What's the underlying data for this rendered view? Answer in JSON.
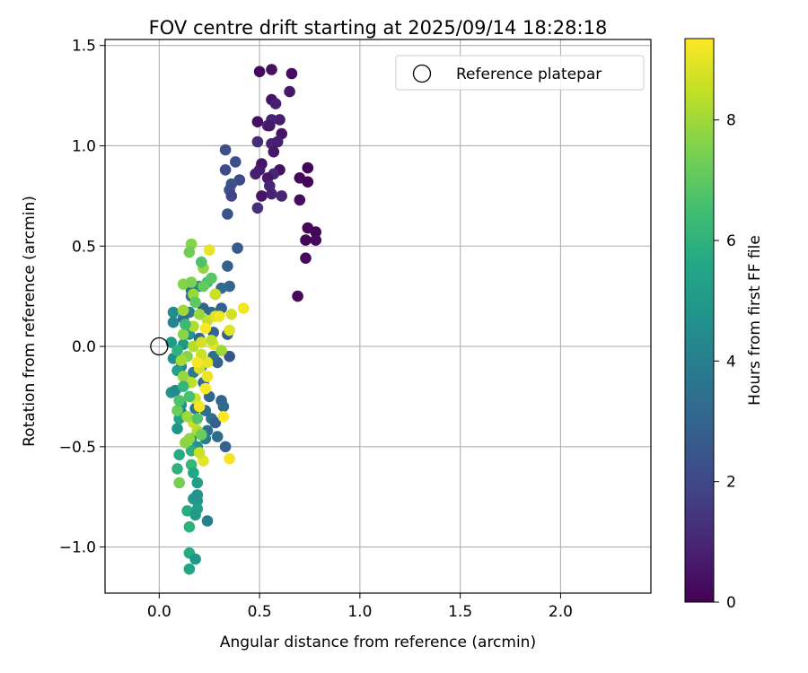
{
  "chart_data": {
    "type": "scatter",
    "title": "FOV centre drift starting at 2025/09/14 18:28:18",
    "xlabel": "Angular distance from reference (arcmin)",
    "ylabel": "Rotation from reference (arcmin)",
    "xlim": [
      -0.27,
      2.45
    ],
    "ylim": [
      -1.23,
      1.53
    ],
    "x_ticks": [
      0.0,
      0.5,
      1.0,
      1.5,
      2.0
    ],
    "x_tick_labels": [
      "0.0",
      "0.5",
      "1.0",
      "1.5",
      "2.0"
    ],
    "y_ticks": [
      -1.0,
      -0.5,
      0.0,
      0.5,
      1.0,
      1.5
    ],
    "y_tick_labels": [
      "−1.0",
      "−0.5",
      "0.0",
      "0.5",
      "1.0",
      "1.5"
    ],
    "grid": true,
    "legend": {
      "position": "top-right",
      "entries": [
        {
          "label": "Reference platepar",
          "marker": "open-circle",
          "x": 0.0,
          "y": 0.0
        }
      ]
    },
    "colorbar": {
      "label": "Hours from first FF file",
      "colormap": "viridis",
      "range": [
        0,
        9.35
      ],
      "ticks": [
        0,
        2,
        4,
        6,
        8
      ],
      "tick_labels": [
        "0",
        "2",
        "4",
        "6",
        "8"
      ]
    },
    "series": [
      {
        "color_by": "hours",
        "points": [
          [
            0.5,
            1.37,
            0.2
          ],
          [
            0.56,
            1.38,
            0.4
          ],
          [
            0.66,
            1.36,
            0.3
          ],
          [
            0.65,
            1.27,
            0.6
          ],
          [
            0.56,
            1.23,
            0.5
          ],
          [
            0.58,
            1.21,
            0.8
          ],
          [
            0.49,
            1.12,
            0.4
          ],
          [
            0.54,
            1.1,
            1.0
          ],
          [
            0.6,
            1.13,
            0.7
          ],
          [
            0.56,
            1.13,
            0.9
          ],
          [
            0.55,
            1.1,
            0.6
          ],
          [
            0.61,
            1.06,
            0.5
          ],
          [
            0.49,
            1.02,
            1.2
          ],
          [
            0.56,
            1.01,
            0.9
          ],
          [
            0.59,
            1.02,
            0.8
          ],
          [
            0.57,
            0.97,
            0.6
          ],
          [
            0.51,
            0.91,
            0.5
          ],
          [
            0.5,
            0.88,
            0.7
          ],
          [
            0.6,
            0.88,
            0.4
          ],
          [
            0.57,
            0.86,
            1.0
          ],
          [
            0.54,
            0.84,
            0.6
          ],
          [
            0.48,
            0.86,
            0.8
          ],
          [
            0.55,
            0.8,
            1.0
          ],
          [
            0.51,
            0.75,
            0.5
          ],
          [
            0.56,
            0.76,
            0.9
          ],
          [
            0.61,
            0.75,
            1.0
          ],
          [
            0.49,
            0.69,
            1.3
          ],
          [
            0.7,
            0.84,
            0.2
          ],
          [
            0.74,
            0.89,
            0.1
          ],
          [
            0.74,
            0.82,
            0.1
          ],
          [
            0.7,
            0.73,
            0.3
          ],
          [
            0.74,
            0.59,
            0.2
          ],
          [
            0.78,
            0.57,
            0.1
          ],
          [
            0.73,
            0.53,
            0.1
          ],
          [
            0.78,
            0.53,
            0.2
          ],
          [
            0.73,
            0.44,
            0.3
          ],
          [
            0.69,
            0.25,
            0.2
          ],
          [
            0.33,
            0.98,
            2.2
          ],
          [
            0.38,
            0.92,
            2.3
          ],
          [
            0.33,
            0.88,
            2.1
          ],
          [
            0.4,
            0.83,
            2.0
          ],
          [
            0.36,
            0.81,
            2.4
          ],
          [
            0.35,
            0.78,
            2.2
          ],
          [
            0.36,
            0.75,
            1.9
          ],
          [
            0.34,
            0.66,
            2.4
          ],
          [
            0.39,
            0.49,
            2.6
          ],
          [
            0.34,
            0.4,
            2.9
          ],
          [
            0.35,
            0.3,
            3.0
          ],
          [
            0.31,
            0.29,
            3.2
          ],
          [
            0.28,
            0.26,
            3.1
          ],
          [
            0.16,
            0.28,
            3.6
          ],
          [
            0.16,
            0.25,
            3.5
          ],
          [
            0.2,
            0.3,
            4.1
          ],
          [
            0.31,
            0.19,
            2.9
          ],
          [
            0.26,
            0.17,
            3.3
          ],
          [
            0.22,
            0.19,
            3.0
          ],
          [
            0.15,
            0.17,
            3.7
          ],
          [
            0.07,
            0.17,
            4.5
          ],
          [
            0.07,
            0.12,
            4.2
          ],
          [
            0.12,
            0.14,
            3.4
          ],
          [
            0.15,
            0.06,
            4.7
          ],
          [
            0.2,
            0.04,
            3.2
          ],
          [
            0.27,
            0.07,
            3.0
          ],
          [
            0.34,
            0.06,
            2.8
          ],
          [
            0.35,
            -0.05,
            2.5
          ],
          [
            0.29,
            -0.08,
            2.9
          ],
          [
            0.27,
            -0.05,
            3.4
          ],
          [
            0.21,
            -0.1,
            3.1
          ],
          [
            0.17,
            -0.13,
            3.8
          ],
          [
            0.11,
            -0.1,
            4.4
          ],
          [
            0.07,
            -0.06,
            4.6
          ],
          [
            0.06,
            0.02,
            5.1
          ],
          [
            0.12,
            0.01,
            5.0
          ],
          [
            0.22,
            -0.18,
            3.3
          ],
          [
            0.25,
            -0.25,
            3.1
          ],
          [
            0.31,
            -0.27,
            3.0
          ],
          [
            0.32,
            -0.3,
            3.2
          ],
          [
            0.23,
            -0.32,
            3.3
          ],
          [
            0.18,
            -0.31,
            3.5
          ],
          [
            0.11,
            -0.33,
            3.9
          ],
          [
            0.09,
            -0.41,
            4.8
          ],
          [
            0.26,
            -0.36,
            3.4
          ],
          [
            0.28,
            -0.38,
            2.9
          ],
          [
            0.24,
            -0.42,
            3.4
          ],
          [
            0.23,
            -0.46,
            3.9
          ],
          [
            0.16,
            -0.46,
            4.5
          ],
          [
            0.19,
            -0.5,
            4.7
          ],
          [
            0.33,
            -0.5,
            2.9
          ],
          [
            0.29,
            -0.45,
            3.3
          ],
          [
            0.06,
            -0.23,
            4.9
          ],
          [
            0.08,
            -0.22,
            4.4
          ],
          [
            0.11,
            -0.29,
            4.8
          ],
          [
            0.09,
            -0.12,
            5.3
          ],
          [
            0.1,
            -0.36,
            5.5
          ],
          [
            0.1,
            -0.54,
            5.7
          ],
          [
            0.16,
            -0.52,
            5.9
          ],
          [
            0.09,
            -0.61,
            6.0
          ],
          [
            0.16,
            -0.59,
            6.2
          ],
          [
            0.17,
            -0.63,
            5.6
          ],
          [
            0.19,
            -0.68,
            5.2
          ],
          [
            0.17,
            -0.76,
            5.0
          ],
          [
            0.19,
            -0.77,
            4.9
          ],
          [
            0.19,
            -0.74,
            4.7
          ],
          [
            0.19,
            -0.81,
            5.3
          ],
          [
            0.14,
            -0.82,
            5.8
          ],
          [
            0.18,
            -0.84,
            5.1
          ],
          [
            0.24,
            -0.87,
            4.0
          ],
          [
            0.15,
            -0.9,
            5.9
          ],
          [
            0.15,
            -1.03,
            5.7
          ],
          [
            0.18,
            -1.06,
            4.9
          ],
          [
            0.15,
            -1.11,
            5.5
          ],
          [
            0.1,
            -0.68,
            7.4
          ],
          [
            0.13,
            -0.48,
            7.7
          ],
          [
            0.15,
            -0.46,
            7.8
          ],
          [
            0.19,
            -0.42,
            8.2
          ],
          [
            0.17,
            -0.38,
            8.5
          ],
          [
            0.14,
            -0.35,
            8.0
          ],
          [
            0.09,
            -0.32,
            7.2
          ],
          [
            0.18,
            -0.26,
            8.7
          ],
          [
            0.16,
            -0.18,
            8.4
          ],
          [
            0.12,
            -0.15,
            7.9
          ],
          [
            0.2,
            -0.11,
            8.8
          ],
          [
            0.24,
            -0.08,
            9.0
          ],
          [
            0.21,
            -0.04,
            8.6
          ],
          [
            0.14,
            -0.05,
            7.6
          ],
          [
            0.11,
            -0.07,
            8.1
          ],
          [
            0.17,
            0.0,
            8.3
          ],
          [
            0.21,
            0.02,
            8.8
          ],
          [
            0.27,
            0.01,
            9.1
          ],
          [
            0.12,
            0.06,
            7.7
          ],
          [
            0.17,
            0.1,
            8.2
          ],
          [
            0.24,
            0.13,
            8.5
          ],
          [
            0.28,
            0.15,
            8.9
          ],
          [
            0.2,
            0.16,
            7.9
          ],
          [
            0.12,
            0.18,
            8.0
          ],
          [
            0.36,
            0.16,
            8.7
          ],
          [
            0.42,
            0.19,
            9.2
          ],
          [
            0.35,
            0.08,
            8.9
          ],
          [
            0.32,
            -0.35,
            9.3
          ],
          [
            0.22,
            -0.57,
            9.0
          ],
          [
            0.35,
            -0.56,
            9.2
          ],
          [
            0.2,
            -0.53,
            8.6
          ],
          [
            0.28,
            0.26,
            8.6
          ],
          [
            0.17,
            0.26,
            7.9
          ],
          [
            0.12,
            0.31,
            7.6
          ],
          [
            0.16,
            0.32,
            7.5
          ],
          [
            0.22,
            0.39,
            7.8
          ],
          [
            0.25,
            0.48,
            9.0
          ],
          [
            0.16,
            0.51,
            7.6
          ],
          [
            0.15,
            0.47,
            7.3
          ],
          [
            0.21,
            0.42,
            6.7
          ],
          [
            0.24,
            0.32,
            6.5
          ],
          [
            0.26,
            0.34,
            6.9
          ],
          [
            0.22,
            0.3,
            7.1
          ],
          [
            0.13,
            0.11,
            6.3
          ],
          [
            0.09,
            -0.02,
            6.0
          ],
          [
            0.12,
            -0.2,
            6.1
          ],
          [
            0.15,
            -0.25,
            6.6
          ],
          [
            0.1,
            -0.27,
            6.7
          ],
          [
            0.19,
            -0.36,
            6.8
          ],
          [
            0.21,
            -0.44,
            7.2
          ],
          [
            0.2,
            -0.3,
            9.2
          ],
          [
            0.23,
            -0.21,
            9.3
          ],
          [
            0.24,
            -0.15,
            9.1
          ],
          [
            0.19,
            -0.08,
            9.2
          ],
          [
            0.23,
            0.09,
            9.3
          ],
          [
            0.3,
            0.15,
            9.2
          ],
          [
            0.26,
            0.03,
            8.4
          ],
          [
            0.31,
            -0.02,
            8.0
          ],
          [
            0.18,
            0.22,
            7.0
          ]
        ]
      }
    ]
  }
}
